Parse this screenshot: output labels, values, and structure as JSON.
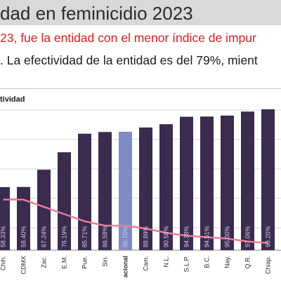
{
  "slide": {
    "title": "dad en feminicidio 2023",
    "line_red": "23, fue la entidad con el menor índice de impur",
    "line_black": ". La efectividad de la entidad es del 79%, mient",
    "chart_label": "tividad"
  },
  "colors": {
    "bar": "#3b2b4e",
    "bar_highlight": "#7f8cc4",
    "line": "#ec7a9a",
    "bar_value_label": "#d0cce0",
    "axis_label": "#2a2a2a"
  },
  "chart_data": {
    "type": "bar",
    "categories": [
      "Chih.",
      "CDMX",
      "Zac.",
      "E.M.",
      "Pue.",
      "Sin.",
      "acional",
      "Cam.",
      "N.L.",
      "S.L.P.",
      "B.C.",
      "Nay.",
      "Q.R.",
      "Chiap."
    ],
    "values": [
      58.33,
      58.4,
      67.24,
      76.19,
      85.71,
      86.58,
      86.7,
      88.89,
      90.58,
      94.38,
      94.51,
      95.0,
      97.06,
      98.2
    ],
    "value_labels": [
      "58.33%",
      "58.40%",
      "67.24%",
      "76.19%",
      "85.71%",
      "86.58%",
      "86.70%",
      "88.89%",
      "90.58%",
      "94.38%",
      "94.51%",
      "95.00%",
      "97.06%",
      "98.20%"
    ],
    "highlight_category": "acional",
    "ylim": [
      26,
      100
    ],
    "grid": true,
    "line_series": {
      "values": [
        35,
        35,
        30,
        25,
        20,
        17,
        17,
        15,
        12,
        10,
        9,
        8,
        6,
        5
      ],
      "ylim": [
        0,
        100
      ]
    }
  }
}
